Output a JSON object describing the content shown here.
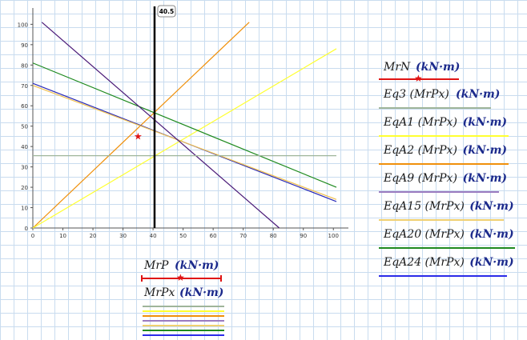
{
  "chart_data": {
    "type": "line",
    "x_ticks": [
      0,
      10,
      20,
      30,
      40,
      50,
      60,
      70,
      80,
      90,
      100
    ],
    "y_ticks": [
      0,
      10,
      20,
      30,
      40,
      50,
      60,
      70,
      80,
      90,
      100
    ],
    "xlim": [
      0,
      105
    ],
    "ylim": [
      0,
      108
    ],
    "vertical_marker": {
      "x": 40.5,
      "label": "40.5"
    },
    "star_point": {
      "x": 35,
      "y": 45
    },
    "series": [
      {
        "color": "#f0900a",
        "points": [
          [
            0,
            0
          ],
          [
            72,
            101
          ]
        ]
      },
      {
        "color": "#ffff30",
        "points": [
          [
            0,
            0
          ],
          [
            101,
            88
          ]
        ]
      },
      {
        "color": "#1f8a1f",
        "points": [
          [
            0,
            81
          ],
          [
            101,
            20
          ]
        ]
      },
      {
        "color": "#2a2ab8",
        "points": [
          [
            0,
            71
          ],
          [
            101,
            13
          ]
        ]
      },
      {
        "color": "#f0c050",
        "points": [
          [
            0,
            70
          ],
          [
            101,
            14
          ]
        ]
      },
      {
        "color": "#4b1b78",
        "points": [
          [
            3,
            101
          ],
          [
            82,
            0
          ]
        ]
      },
      {
        "color": "#9fb59a",
        "points": [
          [
            0,
            35.5
          ],
          [
            101,
            35.5
          ]
        ]
      }
    ]
  },
  "right_legend": {
    "header": {
      "label": "MrN",
      "unit": "(kN·m)"
    },
    "items": [
      {
        "label": "Eq3 (MrPx)",
        "unit": "(kN·m)",
        "color": "#9fb59a"
      },
      {
        "label": "EqA1 (MrPx)",
        "unit": "(kN·m)",
        "color": "#ffff30"
      },
      {
        "label": "EqA2 (MrPx)",
        "unit": "(kN·m)",
        "color": "#f0900a"
      },
      {
        "label": "EqA9 (MrPx)",
        "unit": "(kN·m)",
        "color": "#9b7bc0"
      },
      {
        "label": "EqA15 (MrPx)",
        "unit": "(kN·m)",
        "color": "#f0d070"
      },
      {
        "label": "EqA20 (MrPx)",
        "unit": "(kN·m)",
        "color": "#1f8a1f"
      },
      {
        "label": "EqA24 (MrPx)",
        "unit": "(kN·m)",
        "color": "#2a2ae8"
      }
    ]
  },
  "bottom_legend": {
    "header": {
      "label": "MrP",
      "unit": "(kN·m)"
    },
    "sub": {
      "label": "MrPx",
      "unit": "(kN·m)"
    },
    "line_colors": [
      "#9fb59a",
      "#ffff30",
      "#f0900a",
      "#9b7bc0",
      "#f0d070",
      "#1f8a1f",
      "#2a2ae8"
    ]
  }
}
